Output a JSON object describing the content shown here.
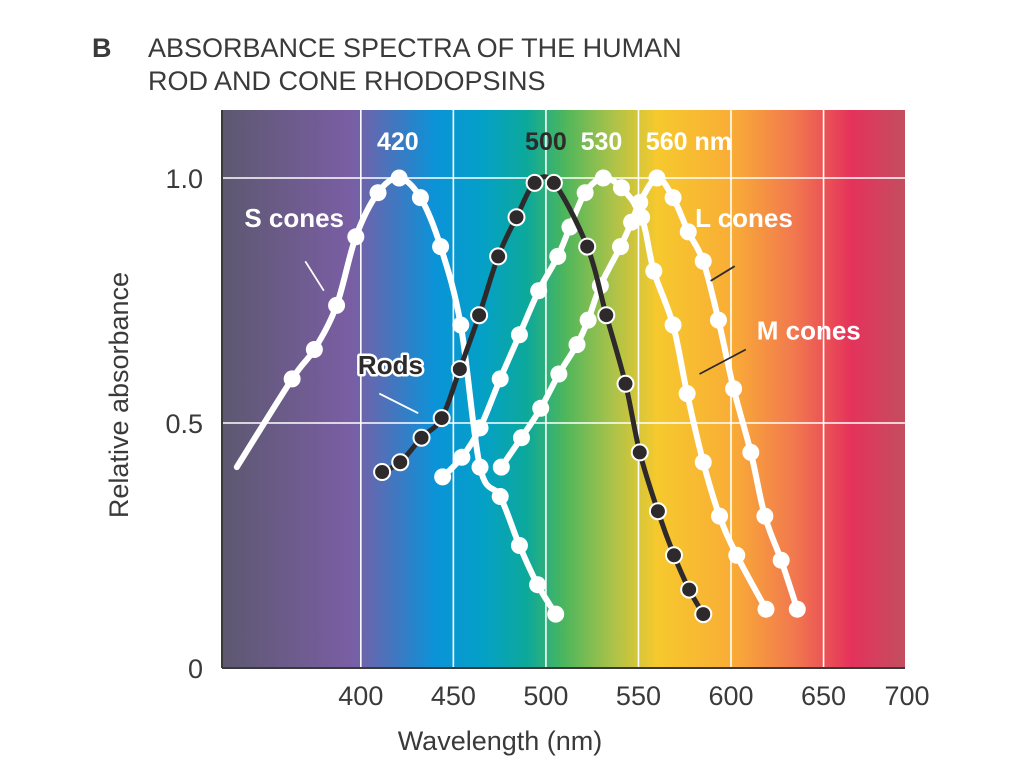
{
  "figure": {
    "panel_letter": "B",
    "title_line1": "ABSORBANCE SPECTRA OF THE HUMAN",
    "title_line2": "ROD AND CONE RHODOPSINS"
  },
  "colors": {
    "white_series": "#ffffff",
    "rods_series": "#2e2a2c",
    "text": "#3a3a3a",
    "grid": "#ffffff",
    "spectrum_stops": [
      {
        "nm": 325,
        "color": "#5d5870"
      },
      {
        "nm": 395,
        "color": "#7a5ea4"
      },
      {
        "nm": 420,
        "color": "#3d79c2"
      },
      {
        "nm": 440,
        "color": "#0b93d8"
      },
      {
        "nm": 465,
        "color": "#04a0c8"
      },
      {
        "nm": 490,
        "color": "#0ca99a"
      },
      {
        "nm": 510,
        "color": "#4db65c"
      },
      {
        "nm": 535,
        "color": "#a7c24a"
      },
      {
        "nm": 560,
        "color": "#f6c92d"
      },
      {
        "nm": 600,
        "color": "#f9ad36"
      },
      {
        "nm": 635,
        "color": "#f1774f"
      },
      {
        "nm": 665,
        "color": "#e5325b"
      },
      {
        "nm": 694,
        "color": "#c34e5f"
      }
    ]
  },
  "chart_data": {
    "type": "line",
    "title": "ABSORBANCE SPECTRA OF THE HUMAN ROD AND CONE RHODOPSINS",
    "xlabel": "Wavelength (nm)",
    "ylabel": "Relative absorbance",
    "xlim": [
      325,
      694
    ],
    "ylim": [
      0,
      1.0
    ],
    "grid": true,
    "x_ticks": [
      400,
      450,
      500,
      550,
      600,
      650,
      700
    ],
    "x_tick_labels": [
      "400",
      "450",
      "500",
      "550",
      "600",
      "650",
      "700"
    ],
    "y_ticks": [
      0,
      0.5,
      1.0
    ],
    "y_tick_labels": [
      "0",
      "0.5",
      "1.0"
    ],
    "peak_labels": [
      {
        "text": "420",
        "nm": 420,
        "color": "#ffffff"
      },
      {
        "text": "500",
        "nm": 500,
        "color": "#2e2a2c"
      },
      {
        "text": "530",
        "nm": 530,
        "color": "#ffffff"
      },
      {
        "text": "560 nm",
        "nm": 560,
        "color": "#ffffff"
      }
    ],
    "series": [
      {
        "name": "S cones",
        "peak_nm": 420,
        "style": "white",
        "curve_start": [
          333,
          0.41
        ],
        "points": [
          [
            362.9,
            0.59
          ],
          [
            374.9,
            0.65
          ],
          [
            386.9,
            0.74
          ],
          [
            397.3,
            0.88
          ],
          [
            409.3,
            0.97
          ],
          [
            420.7,
            1.0
          ],
          [
            432.2,
            0.96
          ],
          [
            443.1,
            0.86
          ],
          [
            454.0,
            0.7
          ],
          [
            464.4,
            0.41
          ],
          [
            475.3,
            0.35
          ],
          [
            485.7,
            0.25
          ],
          [
            495.5,
            0.17
          ],
          [
            505.3,
            0.11
          ]
        ],
        "label": {
          "text": "S cones",
          "nm": 364,
          "abs": 0.9,
          "leader_from": [
            370,
            0.83
          ],
          "leader_to": [
            380,
            0.77
          ]
        }
      },
      {
        "name": "Rods",
        "peak_nm": 500,
        "style": "dark",
        "curve_start": null,
        "points": [
          [
            411.5,
            0.4
          ],
          [
            421.3,
            0.42
          ],
          [
            432.8,
            0.47
          ],
          [
            443.7,
            0.51
          ],
          [
            453.5,
            0.61
          ],
          [
            463.9,
            0.72
          ],
          [
            474.2,
            0.84
          ],
          [
            484.1,
            0.92
          ],
          [
            493.9,
            0.99
          ],
          [
            504.3,
            0.99
          ],
          [
            522.3,
            0.86
          ],
          [
            532.6,
            0.72
          ],
          [
            543.0,
            0.58
          ],
          [
            550.7,
            0.44
          ],
          [
            560.5,
            0.32
          ],
          [
            569.2,
            0.23
          ],
          [
            577.4,
            0.16
          ],
          [
            585.0,
            0.11
          ]
        ],
        "label": {
          "text": "Rods",
          "nm": 416,
          "abs": 0.6,
          "leader_from": [
            410,
            0.56
          ],
          "leader_to": [
            431,
            0.52
          ]
        }
      },
      {
        "name": "M cones",
        "peak_nm": 530,
        "style": "white",
        "curve_start": null,
        "points": [
          [
            444.2,
            0.39
          ],
          [
            454.6,
            0.43
          ],
          [
            464.4,
            0.49
          ],
          [
            475.3,
            0.59
          ],
          [
            485.7,
            0.68
          ],
          [
            496.1,
            0.77
          ],
          [
            506.4,
            0.84
          ],
          [
            513.0,
            0.9
          ],
          [
            521.2,
            0.97
          ],
          [
            531.0,
            1.0
          ],
          [
            540.8,
            0.98
          ],
          [
            551.7,
            0.92
          ],
          [
            558.3,
            0.81
          ],
          [
            568.7,
            0.7
          ],
          [
            576.3,
            0.56
          ],
          [
            585.0,
            0.42
          ],
          [
            593.8,
            0.31
          ],
          [
            603.1,
            0.23
          ],
          [
            618.9,
            0.12
          ]
        ],
        "label": {
          "text": "M cones",
          "nm": 642,
          "abs": 0.67,
          "leader_from": [
            608,
            0.65
          ],
          "leader_to": [
            583,
            0.6
          ]
        }
      },
      {
        "name": "L cones",
        "peak_nm": 560,
        "style": "white",
        "curve_start": null,
        "points": [
          [
            475.9,
            0.41
          ],
          [
            486.8,
            0.47
          ],
          [
            497.2,
            0.53
          ],
          [
            507.0,
            0.6
          ],
          [
            516.8,
            0.66
          ],
          [
            522.8,
            0.71
          ],
          [
            529.4,
            0.78
          ],
          [
            540.3,
            0.86
          ],
          [
            546.3,
            0.91
          ],
          [
            550.7,
            0.95
          ],
          [
            560.0,
            1.0
          ],
          [
            568.7,
            0.96
          ],
          [
            576.9,
            0.89
          ],
          [
            585.0,
            0.83
          ],
          [
            593.2,
            0.71
          ],
          [
            601.4,
            0.57
          ],
          [
            610.7,
            0.44
          ],
          [
            618.3,
            0.31
          ],
          [
            627.1,
            0.22
          ],
          [
            635.8,
            0.12
          ]
        ],
        "label": {
          "text": "L cones",
          "nm": 607,
          "abs": 0.9,
          "leader_from": [
            602,
            0.82
          ],
          "leader_to": [
            589,
            0.79
          ]
        }
      }
    ]
  }
}
